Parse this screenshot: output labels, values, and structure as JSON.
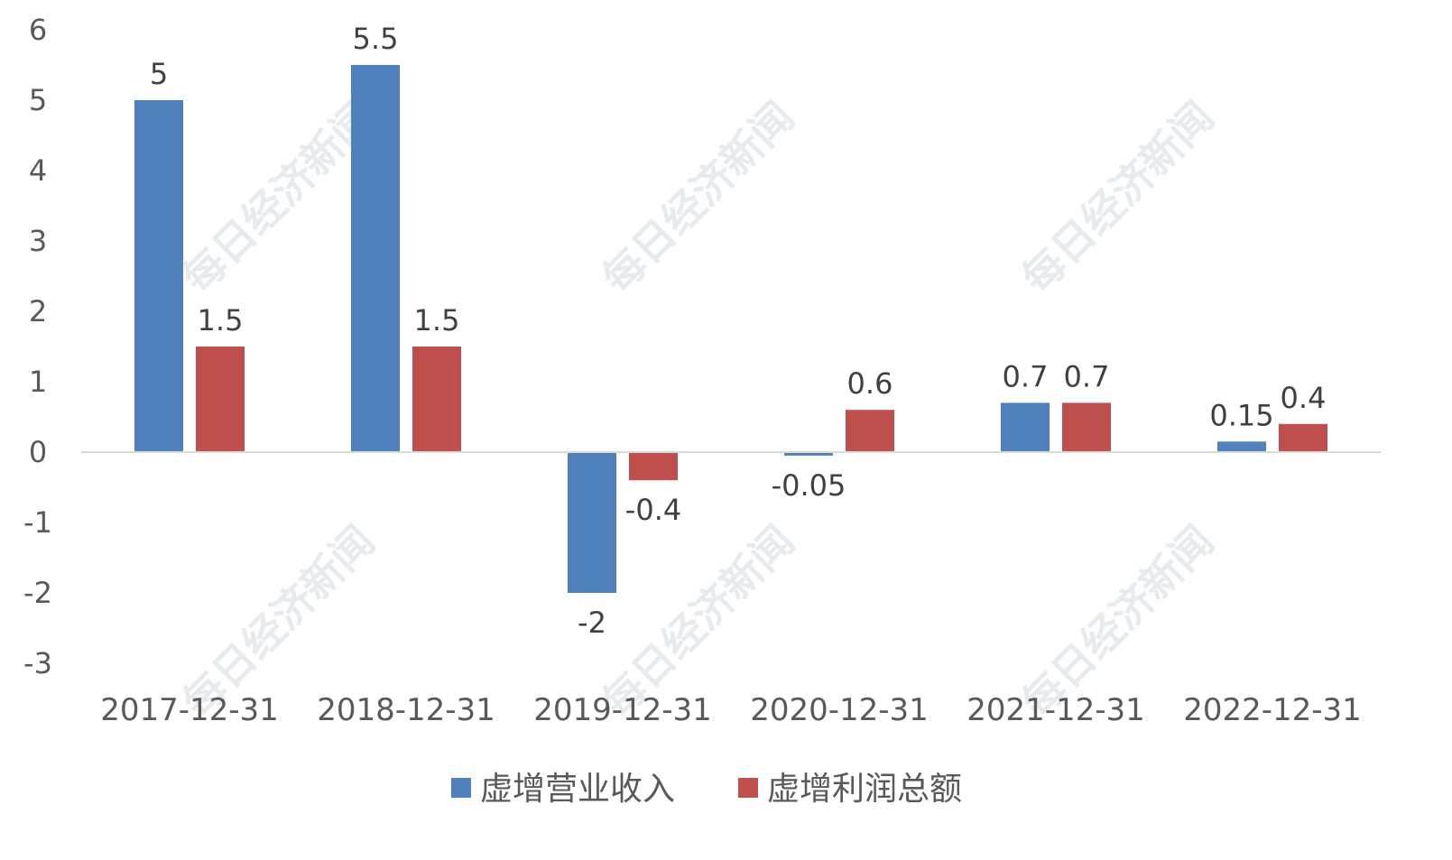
{
  "chart_data": {
    "type": "bar",
    "title": "",
    "xlabel": "",
    "ylabel": "",
    "ylim": [
      -3,
      6
    ],
    "yticks": [
      "6",
      "5",
      "4",
      "3",
      "2",
      "1",
      "0",
      "-1",
      "-2",
      "-3"
    ],
    "categories": [
      "2017-12-31",
      "2018-12-31",
      "2019-12-31",
      "2020-12-31",
      "2021-12-31",
      "2022-12-31"
    ],
    "series": [
      {
        "name": "虚增营业收入",
        "color": "#4f81bd",
        "values": [
          5,
          5.5,
          -2,
          -0.05,
          0.7,
          0.15
        ],
        "labels": [
          "5",
          "5.5",
          "-2",
          "-0.05",
          "0.7",
          "0.15"
        ]
      },
      {
        "name": "虚增利润总额",
        "color": "#c0504d",
        "values": [
          1.5,
          1.5,
          -0.4,
          0.6,
          0.7,
          0.4
        ],
        "labels": [
          "1.5",
          "1.5",
          "-0.4",
          "0.6",
          "0.7",
          "0.4"
        ]
      }
    ],
    "grid": false,
    "legend": "bottom"
  },
  "watermark": "每日经济新闻"
}
